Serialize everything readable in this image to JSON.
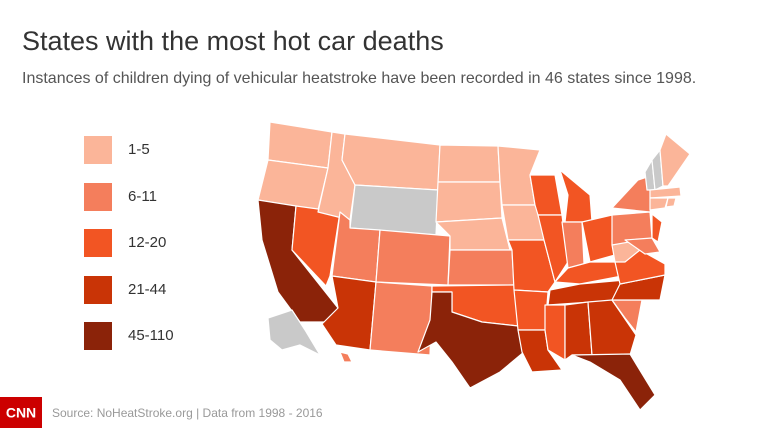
{
  "title": "States with the most hot car deaths",
  "subtitle": "Instances of children dying of vehicular heatstroke have been recorded in 46 states since 1998.",
  "legend": [
    {
      "label": "1-5",
      "color": "#fbb599"
    },
    {
      "label": "6-11",
      "color": "#f47e5c"
    },
    {
      "label": "12-20",
      "color": "#f25523"
    },
    {
      "label": "21-44",
      "color": "#c93406"
    },
    {
      "label": "45-110",
      "color": "#8b2309"
    }
  ],
  "no_data_color": "#c9c9c9",
  "logo": "CNN",
  "source": "Source: NoHeatStroke.org | Data from 1998 - 2016"
}
